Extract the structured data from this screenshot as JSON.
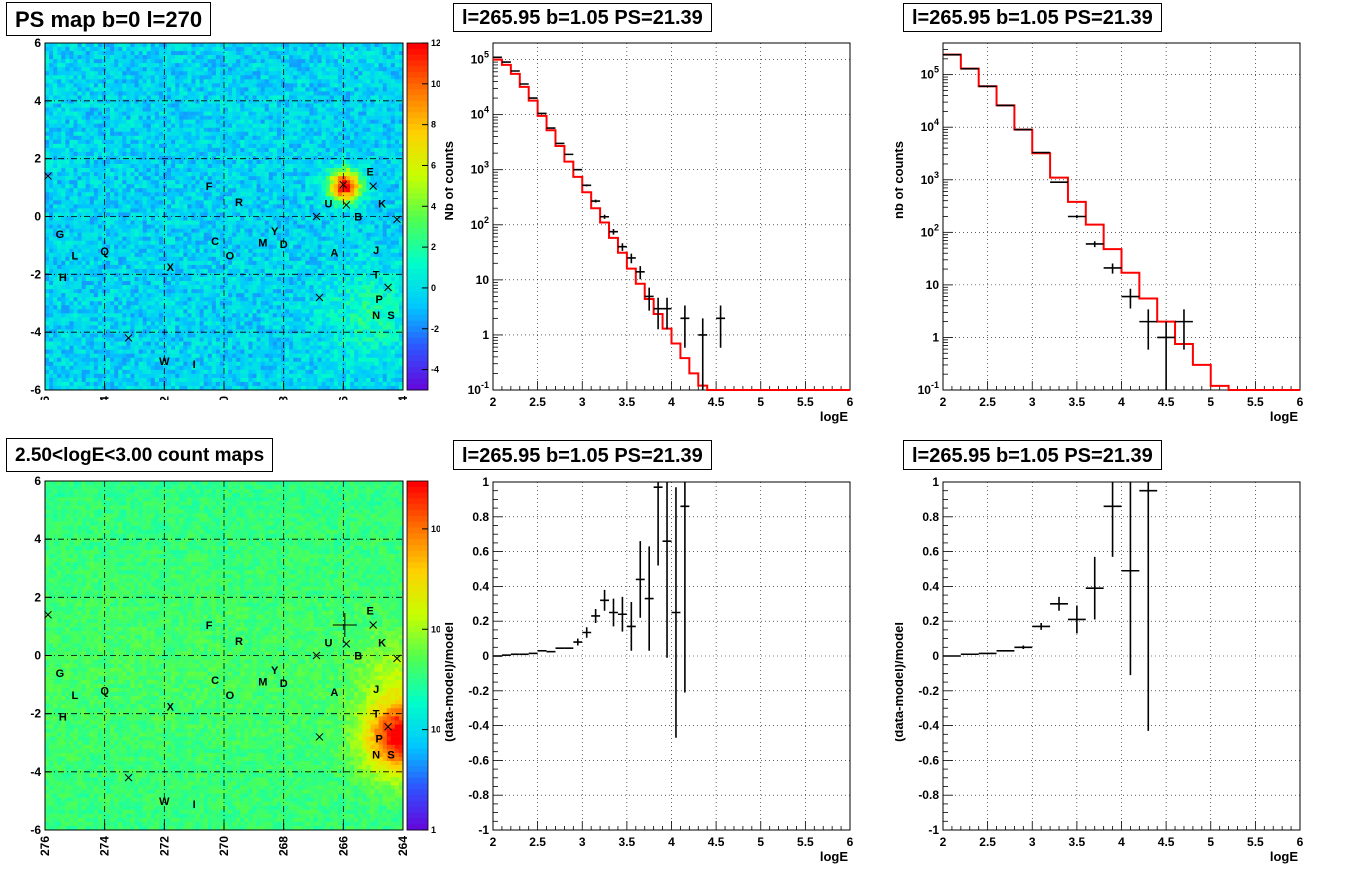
{
  "pads": [
    {
      "id": "map1",
      "title": "PS map b=0 l=270"
    },
    {
      "id": "spec1",
      "title": "l=265.95 b=1.05 PS=21.39"
    },
    {
      "id": "spec2",
      "title": "l=265.95 b=1.05 PS=21.39"
    },
    {
      "id": "map2",
      "title": "2.50<logE<3.00 count maps"
    },
    {
      "id": "res1",
      "title": "l=265.95 b=1.05 PS=21.39"
    },
    {
      "id": "res2",
      "title": "l=265.95 b=1.05 PS=21.39"
    }
  ],
  "chart_data": [
    {
      "type": "heatmap",
      "title": "PS map b=0 l=270",
      "xticks": [
        "276",
        "274",
        "272",
        "270",
        "268",
        "266",
        "264"
      ],
      "yticks": [
        "6",
        "4",
        "2",
        "0",
        "-2",
        "-4",
        "-6"
      ],
      "xlim": [
        276,
        264
      ],
      "ylim": [
        -6,
        6
      ],
      "colorbar": {
        "scale": "linear",
        "range": [
          -5,
          12
        ],
        "ticks": [
          "12",
          "10",
          "8",
          "6",
          "4",
          "2",
          "0",
          "-2",
          "-4"
        ]
      },
      "palette": [
        "#6a00d8",
        "#3050ff",
        "#00c8ff",
        "#00ffc8",
        "#50ff50",
        "#c8ff00",
        "#ffd000",
        "#ff7000",
        "#ff0000"
      ],
      "background_level": 0.28,
      "hotspot": {
        "l": 265.95,
        "b": 1.05,
        "peak": 12
      },
      "grid": true,
      "sources": [
        {
          "name": "E",
          "l": 265.1,
          "b": 1.55
        },
        {
          "name": "U",
          "l": 266.5,
          "b": 0.45
        },
        {
          "name": "B",
          "l": 265.5,
          "b": 0.0
        },
        {
          "name": "K",
          "l": 264.7,
          "b": 0.45
        },
        {
          "name": "F",
          "l": 270.5,
          "b": 1.05
        },
        {
          "name": "R",
          "l": 269.5,
          "b": 0.5
        },
        {
          "name": "G",
          "l": 275.5,
          "b": -0.6
        },
        {
          "name": "L",
          "l": 275.0,
          "b": -1.35
        },
        {
          "name": "H",
          "l": 275.4,
          "b": -2.1
        },
        {
          "name": "Q",
          "l": 274.0,
          "b": -1.2
        },
        {
          "name": "C",
          "l": 270.3,
          "b": -0.85
        },
        {
          "name": "O",
          "l": 269.8,
          "b": -1.35
        },
        {
          "name": "M",
          "l": 268.7,
          "b": -0.9
        },
        {
          "name": "Y",
          "l": 268.3,
          "b": -0.5
        },
        {
          "name": "D",
          "l": 268.0,
          "b": -0.95
        },
        {
          "name": "A",
          "l": 266.3,
          "b": -1.25
        },
        {
          "name": "J",
          "l": 264.9,
          "b": -1.15
        },
        {
          "name": "X",
          "l": 271.8,
          "b": -1.75
        },
        {
          "name": "T",
          "l": 264.9,
          "b": -2.0
        },
        {
          "name": "P",
          "l": 264.8,
          "b": -2.85
        },
        {
          "name": "N",
          "l": 264.9,
          "b": -3.4
        },
        {
          "name": "S",
          "l": 264.4,
          "b": -3.4
        },
        {
          "name": "W",
          "l": 272.0,
          "b": -5.0
        },
        {
          "name": "I",
          "l": 271.0,
          "b": -5.1
        }
      ],
      "markers": [
        {
          "l": 275.9,
          "b": 1.4
        },
        {
          "l": 265.0,
          "b": 1.05
        },
        {
          "l": 264.2,
          "b": -0.1
        },
        {
          "l": 266.9,
          "b": 0.0
        },
        {
          "l": 265.9,
          "b": 0.4
        },
        {
          "l": 266.8,
          "b": -2.8
        },
        {
          "l": 264.5,
          "b": -2.45
        },
        {
          "l": 273.2,
          "b": -4.2
        },
        {
          "l": 266.0,
          "b": 1.1
        }
      ]
    },
    {
      "type": "line",
      "title": "l=265.95 b=1.05 PS=21.39",
      "xlabel": "logE",
      "ylabel": "Nb of counts",
      "xlim": [
        2,
        6
      ],
      "ylim": [
        0.1,
        200000
      ],
      "yscale": "log",
      "xticks": [
        "2",
        "2.5",
        "3",
        "3.5",
        "4",
        "4.5",
        "5",
        "5.5",
        "6"
      ],
      "yticks": [
        "10^5",
        "10^4",
        "10^3",
        "10^2",
        "10",
        "1",
        "10^-1"
      ],
      "grid": true,
      "model": {
        "color": "#ff0000",
        "bin_width": 0.1,
        "x_start": 2.0,
        "values": [
          100000,
          80000,
          55000,
          32000,
          18000,
          9500,
          5200,
          2700,
          1400,
          740,
          390,
          200,
          110,
          58,
          31,
          16,
          8.5,
          4.5,
          2.4,
          1.3,
          0.7,
          0.38,
          0.2,
          0.12,
          0.1,
          0.1,
          0.1,
          0.1,
          0.1,
          0.1,
          0.1,
          0.1,
          0.1,
          0.1,
          0.1,
          0.1,
          0.1,
          0.1,
          0.1,
          0.1
        ]
      },
      "data": {
        "color": "#000000",
        "points": [
          {
            "x": 2.05,
            "y": 110000
          },
          {
            "x": 2.15,
            "y": 90000
          },
          {
            "x": 2.25,
            "y": 62000
          },
          {
            "x": 2.35,
            "y": 36000
          },
          {
            "x": 2.45,
            "y": 20000
          },
          {
            "x": 2.55,
            "y": 10500
          },
          {
            "x": 2.65,
            "y": 5700
          },
          {
            "x": 2.75,
            "y": 3000
          },
          {
            "x": 2.85,
            "y": 1900
          },
          {
            "x": 2.95,
            "y": 1000
          },
          {
            "x": 3.05,
            "y": 520
          },
          {
            "x": 3.15,
            "y": 270
          },
          {
            "x": 3.25,
            "y": 140
          },
          {
            "x": 3.35,
            "y": 75
          },
          {
            "x": 3.45,
            "y": 40
          },
          {
            "x": 3.55,
            "y": 25
          },
          {
            "x": 3.65,
            "y": 14
          },
          {
            "x": 3.75,
            "y": 5
          },
          {
            "x": 3.85,
            "y": 3
          },
          {
            "x": 3.95,
            "y": 3
          },
          {
            "x": 4.15,
            "y": 2
          },
          {
            "x": 4.35,
            "y": 1
          },
          {
            "x": 4.55,
            "y": 2
          }
        ]
      }
    },
    {
      "type": "line",
      "title": "l=265.95 b=1.05 PS=21.39",
      "xlabel": "logE",
      "ylabel": "nb of counts",
      "xlim": [
        2,
        6
      ],
      "ylim": [
        0.1,
        400000
      ],
      "yscale": "log",
      "xticks": [
        "2",
        "2.5",
        "3",
        "3.5",
        "4",
        "4.5",
        "5",
        "5.5",
        "6"
      ],
      "yticks": [
        "10^5",
        "10^4",
        "10^3",
        "10^2",
        "10",
        "1",
        "10^-1"
      ],
      "grid": true,
      "model": {
        "color": "#ff0000",
        "bin_width": 0.2,
        "x_start": 2.0,
        "values": [
          240000,
          130000,
          60000,
          26000,
          9000,
          3200,
          1100,
          380,
          140,
          48,
          17,
          5.5,
          2.0,
          0.75,
          0.3,
          0.12,
          0.1,
          0.1,
          0.1,
          0.1
        ]
      },
      "data": {
        "color": "#000000",
        "points": [
          {
            "x": 2.1,
            "y": 240000
          },
          {
            "x": 2.3,
            "y": 130000
          },
          {
            "x": 2.5,
            "y": 60000
          },
          {
            "x": 2.7,
            "y": 26000
          },
          {
            "x": 2.9,
            "y": 9000
          },
          {
            "x": 3.1,
            "y": 3300
          },
          {
            "x": 3.3,
            "y": 900
          },
          {
            "x": 3.5,
            "y": 200
          },
          {
            "x": 3.7,
            "y": 60
          },
          {
            "x": 3.9,
            "y": 21
          },
          {
            "x": 4.1,
            "y": 6
          },
          {
            "x": 4.3,
            "y": 2
          },
          {
            "x": 4.5,
            "y": 1
          },
          {
            "x": 4.7,
            "y": 2
          }
        ]
      }
    },
    {
      "type": "heatmap",
      "title": "2.50<logE<3.00 count maps",
      "xticks": [
        "276",
        "274",
        "272",
        "270",
        "268",
        "266",
        "264"
      ],
      "yticks": [
        "6",
        "4",
        "2",
        "0",
        "-2",
        "-4",
        "-6"
      ],
      "xlim": [
        276,
        264
      ],
      "ylim": [
        -6,
        6
      ],
      "colorbar": {
        "scale": "log",
        "range": [
          1,
          3000
        ],
        "ticks": [
          "10^3",
          "10^2",
          "10",
          "1"
        ]
      },
      "palette": [
        "#6a00d8",
        "#3050ff",
        "#00c8ff",
        "#00ffc8",
        "#50ff50",
        "#c8ff00",
        "#ffd000",
        "#ff7000",
        "#ff0000"
      ],
      "background_level": 0.5,
      "hotspot": {
        "l": 264.0,
        "b": -2.8,
        "peak": 3000
      },
      "grid": true,
      "crosshair": {
        "l": 265.95,
        "b": 1.05
      },
      "sources": [
        {
          "name": "E",
          "l": 265.1,
          "b": 1.55
        },
        {
          "name": "U",
          "l": 266.5,
          "b": 0.45
        },
        {
          "name": "B",
          "l": 265.5,
          "b": 0.0
        },
        {
          "name": "K",
          "l": 264.7,
          "b": 0.45
        },
        {
          "name": "F",
          "l": 270.5,
          "b": 1.05
        },
        {
          "name": "R",
          "l": 269.5,
          "b": 0.5
        },
        {
          "name": "G",
          "l": 275.5,
          "b": -0.6
        },
        {
          "name": "L",
          "l": 275.0,
          "b": -1.35
        },
        {
          "name": "H",
          "l": 275.4,
          "b": -2.1
        },
        {
          "name": "Q",
          "l": 274.0,
          "b": -1.2
        },
        {
          "name": "C",
          "l": 270.3,
          "b": -0.85
        },
        {
          "name": "O",
          "l": 269.8,
          "b": -1.35
        },
        {
          "name": "M",
          "l": 268.7,
          "b": -0.9
        },
        {
          "name": "Y",
          "l": 268.3,
          "b": -0.5
        },
        {
          "name": "D",
          "l": 268.0,
          "b": -0.95
        },
        {
          "name": "A",
          "l": 266.3,
          "b": -1.25
        },
        {
          "name": "J",
          "l": 264.9,
          "b": -1.15
        },
        {
          "name": "X",
          "l": 271.8,
          "b": -1.75
        },
        {
          "name": "T",
          "l": 264.9,
          "b": -2.0
        },
        {
          "name": "P",
          "l": 264.8,
          "b": -2.85
        },
        {
          "name": "N",
          "l": 264.9,
          "b": -3.4
        },
        {
          "name": "S",
          "l": 264.4,
          "b": -3.4
        },
        {
          "name": "W",
          "l": 272.0,
          "b": -5.0
        },
        {
          "name": "I",
          "l": 271.0,
          "b": -5.1
        }
      ],
      "markers": [
        {
          "l": 275.9,
          "b": 1.4
        },
        {
          "l": 265.0,
          "b": 1.05
        },
        {
          "l": 264.2,
          "b": -0.1
        },
        {
          "l": 266.9,
          "b": 0.0
        },
        {
          "l": 265.9,
          "b": 0.4
        },
        {
          "l": 266.8,
          "b": -2.8
        },
        {
          "l": 264.5,
          "b": -2.45
        },
        {
          "l": 273.2,
          "b": -4.2
        }
      ]
    },
    {
      "type": "scatter",
      "title": "l=265.95 b=1.05 PS=21.39",
      "xlabel": "logE",
      "ylabel": "(data-model)/model",
      "xlim": [
        2,
        6
      ],
      "ylim": [
        -1,
        1
      ],
      "xticks": [
        "2",
        "2.5",
        "3",
        "3.5",
        "4",
        "4.5",
        "5",
        "5.5",
        "6"
      ],
      "yticks": [
        "1",
        "0.8",
        "0.6",
        "0.4",
        "0.2",
        "0",
        "-0.2",
        "-0.4",
        "-0.6",
        "-0.8",
        "-1"
      ],
      "grid": true,
      "points": [
        {
          "x": 2.05,
          "y": 0.0,
          "xerr": 0.05,
          "yerr": 0.0
        },
        {
          "x": 2.15,
          "y": 0.005,
          "xerr": 0.05,
          "yerr": 0.0
        },
        {
          "x": 2.25,
          "y": 0.01,
          "xerr": 0.05,
          "yerr": 0.0
        },
        {
          "x": 2.35,
          "y": 0.01,
          "xerr": 0.05,
          "yerr": 0.0
        },
        {
          "x": 2.45,
          "y": 0.015,
          "xerr": 0.05,
          "yerr": 0.0
        },
        {
          "x": 2.55,
          "y": 0.03,
          "xerr": 0.05,
          "yerr": 0.0
        },
        {
          "x": 2.65,
          "y": 0.025,
          "xerr": 0.05,
          "yerr": 0.0
        },
        {
          "x": 2.75,
          "y": 0.045,
          "xerr": 0.05,
          "yerr": 0.0
        },
        {
          "x": 2.85,
          "y": 0.045,
          "xerr": 0.05,
          "yerr": 0.0
        },
        {
          "x": 2.95,
          "y": 0.08,
          "xerr": 0.05,
          "yerr": 0.02
        },
        {
          "x": 3.05,
          "y": 0.135,
          "xerr": 0.05,
          "yerr": 0.03
        },
        {
          "x": 3.15,
          "y": 0.23,
          "xerr": 0.05,
          "yerr": 0.04
        },
        {
          "x": 3.25,
          "y": 0.32,
          "xerr": 0.05,
          "yerr": 0.06
        },
        {
          "x": 3.35,
          "y": 0.25,
          "xerr": 0.05,
          "yerr": 0.08
        },
        {
          "x": 3.45,
          "y": 0.24,
          "xerr": 0.05,
          "yerr": 0.1
        },
        {
          "x": 3.55,
          "y": 0.17,
          "xerr": 0.05,
          "yerr": 0.14
        },
        {
          "x": 3.65,
          "y": 0.44,
          "xerr": 0.05,
          "yerr": 0.22
        },
        {
          "x": 3.75,
          "y": 0.33,
          "xerr": 0.05,
          "yerr": 0.3
        },
        {
          "x": 3.85,
          "y": 0.97,
          "xerr": 0.05,
          "yerr": 0.45
        },
        {
          "x": 3.95,
          "y": 0.66,
          "xerr": 0.05,
          "yerr": 0.67
        },
        {
          "x": 4.05,
          "y": 0.25,
          "xerr": 0.05,
          "yerr": 0.72
        },
        {
          "x": 4.15,
          "y": 0.86,
          "xerr": 0.05,
          "yerr": 1.07
        }
      ]
    },
    {
      "type": "scatter",
      "title": "l=265.95 b=1.05 PS=21.39",
      "xlabel": "logE",
      "ylabel": "(data-model)/model",
      "xlim": [
        2,
        6
      ],
      "ylim": [
        -1,
        1
      ],
      "xticks": [
        "2",
        "2.5",
        "3",
        "3.5",
        "4",
        "4.5",
        "5",
        "5.5",
        "6"
      ],
      "yticks": [
        "1",
        "0.8",
        "0.6",
        "0.4",
        "0.2",
        "0",
        "-0.2",
        "-0.4",
        "-0.6",
        "-0.8",
        "-1"
      ],
      "grid": true,
      "points": [
        {
          "x": 2.1,
          "y": 0.0,
          "xerr": 0.1,
          "yerr": 0.0
        },
        {
          "x": 2.3,
          "y": 0.01,
          "xerr": 0.1,
          "yerr": 0.0
        },
        {
          "x": 2.5,
          "y": 0.015,
          "xerr": 0.1,
          "yerr": 0.0
        },
        {
          "x": 2.7,
          "y": 0.03,
          "xerr": 0.1,
          "yerr": 0.0
        },
        {
          "x": 2.9,
          "y": 0.05,
          "xerr": 0.1,
          "yerr": 0.01
        },
        {
          "x": 3.1,
          "y": 0.17,
          "xerr": 0.1,
          "yerr": 0.02
        },
        {
          "x": 3.3,
          "y": 0.3,
          "xerr": 0.1,
          "yerr": 0.04
        },
        {
          "x": 3.5,
          "y": 0.21,
          "xerr": 0.1,
          "yerr": 0.08
        },
        {
          "x": 3.7,
          "y": 0.39,
          "xerr": 0.1,
          "yerr": 0.18
        },
        {
          "x": 3.9,
          "y": 0.86,
          "xerr": 0.1,
          "yerr": 0.29
        },
        {
          "x": 4.1,
          "y": 0.49,
          "xerr": 0.1,
          "yerr": 0.6
        },
        {
          "x": 4.3,
          "y": 0.95,
          "xerr": 0.1,
          "yerr": 1.38
        }
      ]
    }
  ]
}
